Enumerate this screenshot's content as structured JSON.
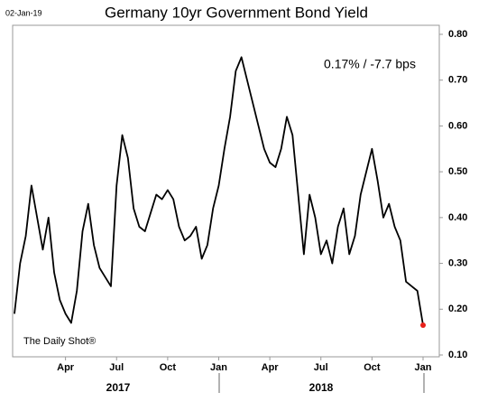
{
  "chart_data": {
    "type": "line",
    "title": "Germany 10yr Government Bond Yield",
    "date_stamp": "02-Jan-19",
    "annotation": "0.17%  /  -7.7 bps",
    "source": "The Daily Shot®",
    "years": [
      "2017",
      "2018"
    ],
    "categories": [
      null,
      null,
      null,
      null,
      null,
      null,
      null,
      null,
      null,
      "Apr",
      null,
      null,
      null,
      null,
      null,
      null,
      null,
      null,
      "Jul",
      null,
      null,
      null,
      null,
      null,
      null,
      null,
      null,
      "Oct",
      null,
      null,
      null,
      null,
      null,
      null,
      null,
      null,
      "Jan",
      null,
      null,
      null,
      null,
      null,
      null,
      null,
      null,
      "Apr",
      null,
      null,
      null,
      null,
      null,
      null,
      null,
      null,
      "Jul",
      null,
      null,
      null,
      null,
      null,
      null,
      null,
      null,
      "Oct",
      null,
      null,
      null,
      null,
      null,
      null,
      null,
      null,
      "Jan"
    ],
    "series": [
      {
        "name": "Germany 10yr Government Bond Yield",
        "color": "#000000",
        "values": [
          0.19,
          0.3,
          0.36,
          0.47,
          0.4,
          0.33,
          0.4,
          0.28,
          0.22,
          0.19,
          0.17,
          0.24,
          0.37,
          0.43,
          0.34,
          0.29,
          0.27,
          0.25,
          0.47,
          0.58,
          0.53,
          0.42,
          0.38,
          0.37,
          0.41,
          0.45,
          0.44,
          0.46,
          0.44,
          0.38,
          0.35,
          0.36,
          0.38,
          0.31,
          0.34,
          0.42,
          0.47,
          0.55,
          0.62,
          0.72,
          0.75,
          0.7,
          0.65,
          0.6,
          0.55,
          0.52,
          0.51,
          0.55,
          0.62,
          0.58,
          0.45,
          0.32,
          0.45,
          0.4,
          0.32,
          0.35,
          0.3,
          0.38,
          0.42,
          0.32,
          0.36,
          0.45,
          0.5,
          0.55,
          0.48,
          0.4,
          0.43,
          0.38,
          0.35,
          0.26,
          0.25,
          0.24,
          0.165
        ]
      }
    ],
    "last_point_color": "#e8201a",
    "ylim": [
      0.1,
      0.8
    ],
    "yticks": [
      {
        "value": 0.1,
        "label": "0.10"
      },
      {
        "value": 0.2,
        "label": "0.20"
      },
      {
        "value": 0.3,
        "label": "0.30"
      },
      {
        "value": 0.4,
        "label": "0.40"
      },
      {
        "value": 0.5,
        "label": "0.50"
      },
      {
        "value": 0.6,
        "label": "0.60"
      },
      {
        "value": 0.7,
        "label": "0.70"
      },
      {
        "value": 0.8,
        "label": "0.80"
      }
    ]
  }
}
